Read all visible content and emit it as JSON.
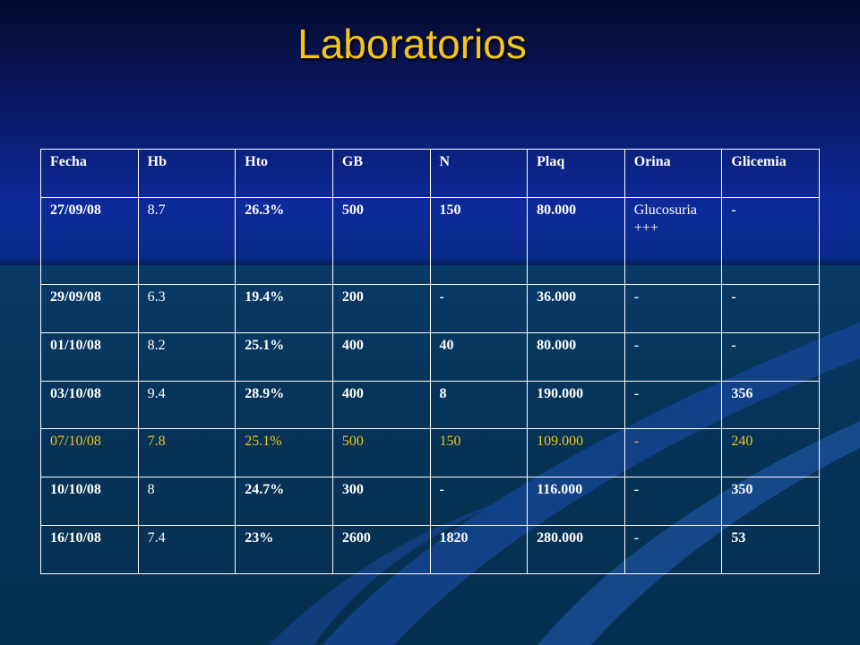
{
  "slide": {
    "title": "Laboratorios"
  },
  "table": {
    "headers": [
      "Fecha",
      "Hb",
      "Hto",
      "GB",
      "N",
      "Plaq",
      "Orina",
      "Glicemia"
    ],
    "rows": [
      [
        "27/09/08",
        "8.7",
        "26.3%",
        "500",
        "150",
        "80.000",
        "Glucosuria +++",
        "-"
      ],
      [
        "29/09/08",
        "6.3",
        "19.4%",
        "200",
        "-",
        "36.000",
        "-",
        "-"
      ],
      [
        "01/10/08",
        "8.2",
        "25.1%",
        "400",
        "40",
        "80.000",
        "-",
        "-"
      ],
      [
        "03/10/08",
        "9.4",
        "28.9%",
        "400",
        "8",
        "190.000",
        "-",
        "356"
      ],
      [
        "07/10/08",
        "7.8",
        "25.1%",
        "500",
        "150",
        "109.000",
        "-",
        "240"
      ],
      [
        "10/10/08",
        "8",
        "24.7%",
        "300",
        "-",
        "116.000",
        "-",
        "350"
      ],
      [
        "16/10/08",
        "7.4",
        "23%",
        "2600",
        "1820",
        "280.000",
        "-",
        "53"
      ]
    ],
    "highlight_row_color": "#f5c518",
    "text_color": "#ffffff"
  }
}
